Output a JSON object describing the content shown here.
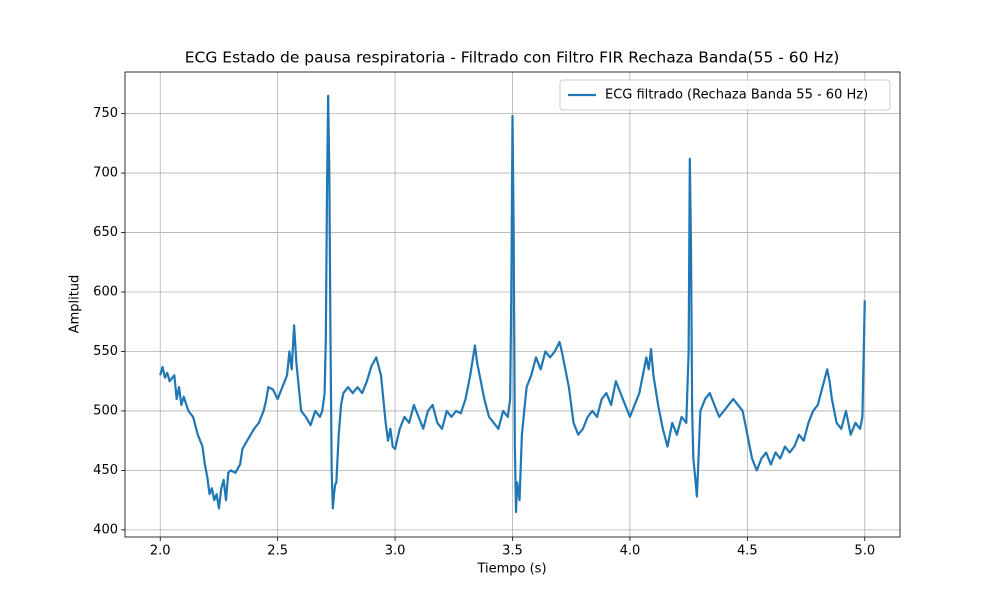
{
  "chart_data": {
    "type": "line",
    "title": "ECG Estado de pausa respiratoria - Filtrado con Filtro FIR Rechaza Banda(55 - 60 Hz)",
    "xlabel": "Tiempo (s)",
    "ylabel": "Amplitud",
    "xlim": [
      1.85,
      5.15
    ],
    "ylim": [
      394,
      785
    ],
    "xticks": [
      {
        "value": 2,
        "label": "2.0"
      },
      2.5,
      {
        "value": 3,
        "label": "3.0"
      },
      3.5,
      {
        "value": 4,
        "label": "4.0"
      },
      4.5,
      {
        "value": 5,
        "label": "5.0"
      }
    ],
    "yticks": [
      400,
      450,
      500,
      550,
      600,
      650,
      700,
      750
    ],
    "grid": true,
    "legend": "upper right",
    "x": [
      2.0,
      2.01,
      2.02,
      2.03,
      2.04,
      2.06,
      2.07,
      2.08,
      2.09,
      2.1,
      2.12,
      2.14,
      2.16,
      2.18,
      2.19,
      2.2,
      2.21,
      2.22,
      2.23,
      2.24,
      2.25,
      2.26,
      2.27,
      2.28,
      2.29,
      2.3,
      2.32,
      2.34,
      2.35,
      2.37,
      2.4,
      2.42,
      2.44,
      2.45,
      2.46,
      2.48,
      2.5,
      2.52,
      2.54,
      2.55,
      2.56,
      2.57,
      2.58,
      2.59,
      2.6,
      2.62,
      2.64,
      2.66,
      2.68,
      2.69,
      2.7,
      2.705,
      2.71,
      2.715,
      2.72,
      2.725,
      2.73,
      2.735,
      2.74,
      2.745,
      2.75,
      2.76,
      2.77,
      2.78,
      2.8,
      2.82,
      2.84,
      2.86,
      2.88,
      2.9,
      2.92,
      2.94,
      2.95,
      2.96,
      2.97,
      2.98,
      2.99,
      3.0,
      3.02,
      3.04,
      3.06,
      3.08,
      3.1,
      3.12,
      3.14,
      3.16,
      3.18,
      3.2,
      3.22,
      3.24,
      3.26,
      3.28,
      3.3,
      3.32,
      3.34,
      3.35,
      3.36,
      3.38,
      3.4,
      3.42,
      3.44,
      3.46,
      3.48,
      3.49,
      3.495,
      3.5,
      3.505,
      3.51,
      3.515,
      3.52,
      3.53,
      3.54,
      3.56,
      3.58,
      3.6,
      3.62,
      3.64,
      3.66,
      3.68,
      3.7,
      3.71,
      3.72,
      3.74,
      3.76,
      3.78,
      3.8,
      3.82,
      3.84,
      3.86,
      3.88,
      3.9,
      3.92,
      3.94,
      3.96,
      3.98,
      4.0,
      4.02,
      4.04,
      4.06,
      4.07,
      4.08,
      4.09,
      4.1,
      4.12,
      4.14,
      4.16,
      4.18,
      4.2,
      4.22,
      4.24,
      4.25,
      4.255,
      4.26,
      4.265,
      4.27,
      4.28,
      4.285,
      4.29,
      4.3,
      4.32,
      4.34,
      4.36,
      4.38,
      4.4,
      4.42,
      4.44,
      4.46,
      4.48,
      4.5,
      4.52,
      4.54,
      4.56,
      4.58,
      4.6,
      4.62,
      4.64,
      4.66,
      4.68,
      4.7,
      4.72,
      4.74,
      4.76,
      4.78,
      4.8,
      4.82,
      4.84,
      4.85,
      4.86,
      4.88,
      4.9,
      4.92,
      4.94,
      4.96,
      4.98,
      4.99,
      5.0
    ],
    "series": [
      {
        "name": "ECG filtrado (Rechaza Banda 55 - 60 Hz)",
        "color": "#1f77b4",
        "values": [
          530,
          537,
          528,
          532,
          525,
          530,
          510,
          520,
          505,
          512,
          500,
          495,
          480,
          470,
          455,
          445,
          430,
          435,
          425,
          430,
          418,
          435,
          442,
          425,
          448,
          450,
          448,
          455,
          468,
          475,
          485,
          490,
          500,
          508,
          520,
          518,
          510,
          520,
          530,
          550,
          535,
          572,
          540,
          520,
          500,
          495,
          488,
          500,
          495,
          500,
          515,
          560,
          680,
          765,
          700,
          560,
          450,
          418,
          430,
          438,
          440,
          480,
          505,
          515,
          520,
          515,
          520,
          515,
          525,
          538,
          545,
          530,
          510,
          490,
          475,
          485,
          470,
          468,
          485,
          495,
          490,
          505,
          495,
          485,
          500,
          505,
          490,
          485,
          500,
          495,
          500,
          498,
          510,
          530,
          555,
          540,
          530,
          510,
          495,
          490,
          485,
          500,
          495,
          510,
          600,
          748,
          650,
          470,
          415,
          440,
          425,
          480,
          520,
          530,
          545,
          535,
          550,
          545,
          550,
          558,
          550,
          540,
          520,
          490,
          480,
          485,
          495,
          500,
          495,
          510,
          515,
          505,
          525,
          515,
          505,
          495,
          505,
          515,
          535,
          545,
          535,
          552,
          530,
          505,
          485,
          470,
          490,
          480,
          495,
          490,
          550,
          712,
          640,
          500,
          460,
          440,
          428,
          450,
          500,
          510,
          515,
          505,
          495,
          500,
          505,
          510,
          505,
          500,
          480,
          460,
          450,
          460,
          465,
          455,
          465,
          460,
          470,
          465,
          470,
          480,
          475,
          490,
          500,
          505,
          520,
          535,
          525,
          510,
          490,
          485,
          500,
          480,
          490,
          485,
          495,
          593
        ]
      }
    ]
  }
}
